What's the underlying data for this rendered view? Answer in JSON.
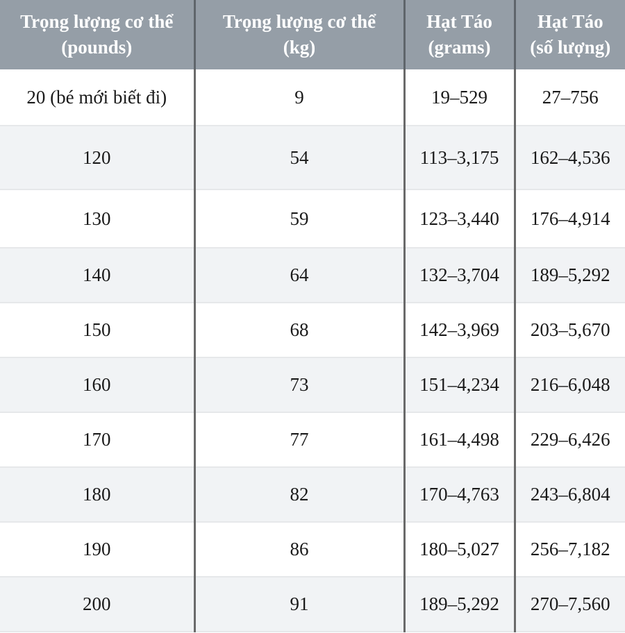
{
  "table": {
    "headers": [
      {
        "line1": "Trọng lượng cơ thể",
        "line2": "(pounds)"
      },
      {
        "line1": "Trọng lượng cơ thể",
        "line2": "(kg)"
      },
      {
        "line1": "Hạt Táo",
        "line2": "(grams)"
      },
      {
        "line1": "Hạt Táo",
        "line2": "(số lượng)"
      }
    ],
    "rows": [
      [
        "20 (bé mới biết đi)",
        "9",
        "19–529",
        "27–756"
      ],
      [
        "120",
        "54",
        "113–3,175",
        "162–4,536"
      ],
      [
        "130",
        "59",
        "123–3,440",
        "176–4,914"
      ],
      [
        "140",
        "64",
        "132–3,704",
        "189–5,292"
      ],
      [
        "150",
        "68",
        "142–3,969",
        "203–5,670"
      ],
      [
        "160",
        "73",
        "151–4,234",
        "216–6,048"
      ],
      [
        "170",
        "77",
        "161–4,498",
        "229–6,426"
      ],
      [
        "180",
        "82",
        "170–4,763",
        "243–6,804"
      ],
      [
        "190",
        "86",
        "180–5,027",
        "256–7,182"
      ],
      [
        "200",
        "91",
        "189–5,292",
        "270–7,560"
      ]
    ],
    "colors": {
      "header_bg": "#959ea7",
      "header_text": "#ffffff",
      "row_alt_bg": "#f1f3f5"
    }
  }
}
